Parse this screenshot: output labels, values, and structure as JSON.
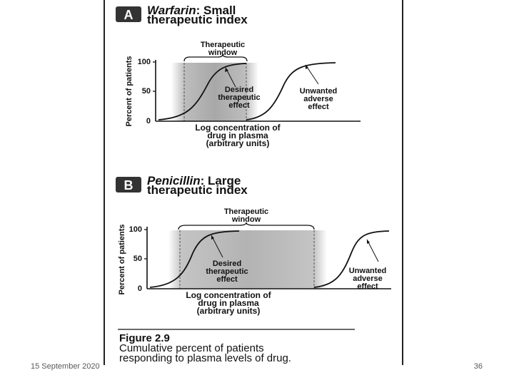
{
  "slide": {
    "date": "15 September 2020",
    "page_number": "36"
  },
  "panel_a": {
    "badge": "A",
    "title_drug": "Warfarin",
    "title_line1_rest": ": Small",
    "title_line2": "therapeutic index",
    "window_label_1": "Therapeutic",
    "window_label_2": "window",
    "ylabel": "Percent of patients",
    "tick_100": "100",
    "tick_50": "50",
    "tick_0": "0",
    "desired_1": "Desired",
    "desired_2": "therapeutic",
    "desired_3": "effect",
    "adverse_1": "Unwanted",
    "adverse_2": "adverse",
    "adverse_3": "effect",
    "xlabel_1": "Log concentration of",
    "xlabel_2": "drug in plasma",
    "xlabel_3": "(arbitrary units)"
  },
  "panel_b": {
    "badge": "B",
    "title_drug": "Penicillin",
    "title_line1_rest": ": Large",
    "title_line2": "therapeutic index",
    "window_label_1": "Therapeutic",
    "window_label_2": "window",
    "ylabel": "Percent of patients",
    "tick_100": "100",
    "tick_50": "50",
    "tick_0": "0",
    "desired_1": "Desired",
    "desired_2": "therapeutic",
    "desired_3": "effect",
    "adverse_1": "Unwanted",
    "adverse_2": "adverse",
    "adverse_3": "effect",
    "xlabel_1": "Log concentration of",
    "xlabel_2": "drug in plasma",
    "xlabel_3": "(arbitrary units)"
  },
  "caption": {
    "figure_label": "Figure 2.9",
    "line1": "Cumulative percent of patients",
    "line2": "responding to plasma levels of drug."
  }
}
